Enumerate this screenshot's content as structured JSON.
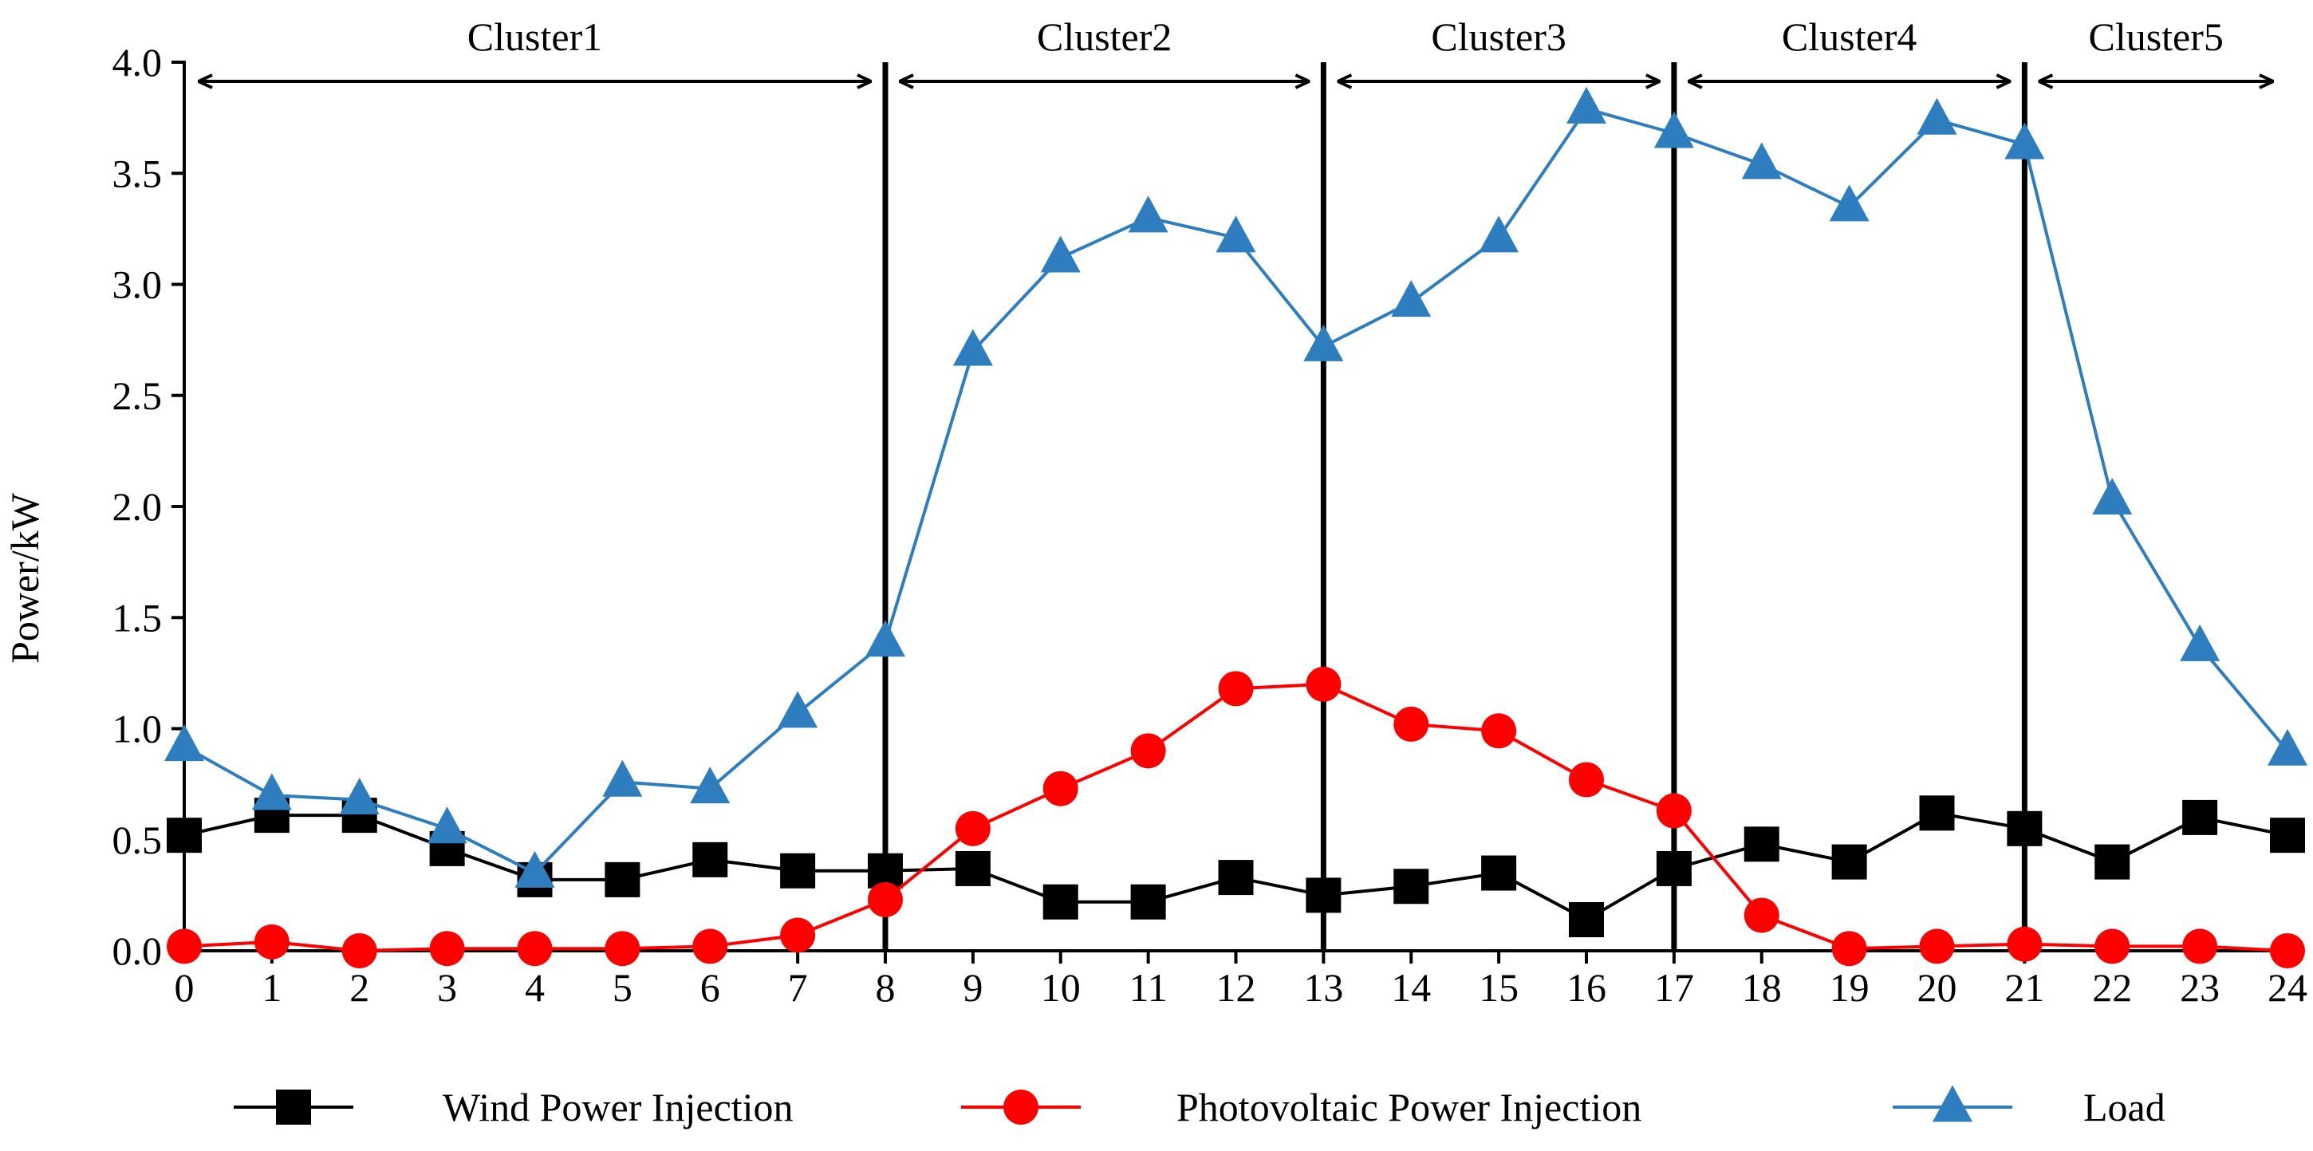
{
  "chart_data": {
    "type": "line",
    "title": "",
    "xlabel": "",
    "ylabel": "Power/kW",
    "x": [
      0,
      1,
      2,
      3,
      4,
      5,
      6,
      7,
      8,
      9,
      10,
      11,
      12,
      13,
      14,
      15,
      16,
      17,
      18,
      19,
      20,
      21,
      22,
      23,
      24
    ],
    "xlim": [
      0,
      24
    ],
    "ylim": [
      0,
      4.0
    ],
    "y_ticks": [
      "0.0",
      "0.5",
      "1.0",
      "1.5",
      "2.0",
      "2.5",
      "3.0",
      "3.5",
      "4.0"
    ],
    "x_ticks": [
      "0",
      "1",
      "2",
      "3",
      "4",
      "5",
      "6",
      "7",
      "8",
      "9",
      "10",
      "11",
      "12",
      "13",
      "14",
      "15",
      "16",
      "17",
      "18",
      "19",
      "20",
      "21",
      "22",
      "23",
      "24"
    ],
    "grid": false,
    "legend_position": "bottom",
    "series": [
      {
        "name": "Wind Power Injection",
        "color": "#000000",
        "marker": "square",
        "values": [
          0.52,
          0.61,
          0.61,
          0.46,
          0.32,
          0.32,
          0.41,
          0.36,
          0.36,
          0.37,
          0.22,
          0.22,
          0.33,
          0.25,
          0.29,
          0.35,
          0.14,
          0.37,
          0.48,
          0.4,
          0.62,
          0.55,
          0.4,
          0.6,
          0.52
        ]
      },
      {
        "name": "Photovoltaic Power Injection",
        "color": "#ff0000",
        "marker": "circle",
        "values": [
          0.02,
          0.04,
          0.0,
          0.01,
          0.01,
          0.01,
          0.02,
          0.07,
          0.23,
          0.55,
          0.73,
          0.9,
          1.18,
          1.2,
          1.02,
          0.99,
          0.77,
          0.63,
          0.16,
          0.01,
          0.02,
          0.03,
          0.02,
          0.02,
          0.0
        ]
      },
      {
        "name": "Load",
        "color": "#2e7ebf",
        "marker": "triangle",
        "values": [
          0.92,
          0.7,
          0.68,
          0.55,
          0.35,
          0.76,
          0.73,
          1.07,
          1.39,
          2.7,
          3.12,
          3.3,
          3.21,
          2.72,
          2.92,
          3.21,
          3.79,
          3.68,
          3.54,
          3.35,
          3.74,
          3.63,
          2.03,
          1.37,
          0.9
        ]
      }
    ],
    "clusters": [
      {
        "label": "Cluster1",
        "start": 0,
        "end": 8
      },
      {
        "label": "Cluster2",
        "start": 8,
        "end": 13
      },
      {
        "label": "Cluster3",
        "start": 13,
        "end": 17
      },
      {
        "label": "Cluster4",
        "start": 17,
        "end": 21
      },
      {
        "label": "Cluster5",
        "start": 21,
        "end": 24
      }
    ],
    "dividers": [
      8,
      13,
      17,
      21
    ]
  }
}
